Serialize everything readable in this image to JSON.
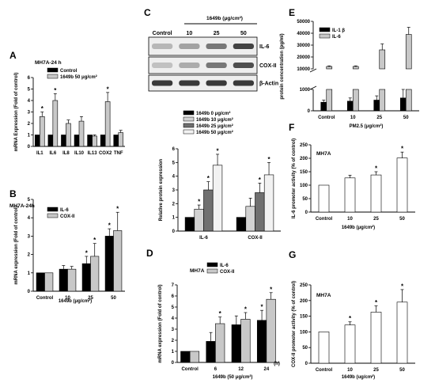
{
  "chart_data": [
    {
      "id": "A",
      "panel_label": "A",
      "type": "bar",
      "title": "MH7A-24 h",
      "ylabel": "mRNA Expression (Fold of control)",
      "ylim": [
        0,
        6
      ],
      "yticks": [
        0,
        1,
        2,
        3,
        4,
        5,
        6
      ],
      "categories": [
        "IL1",
        "IL6",
        "IL8",
        "IL10",
        "IL13",
        "COX2",
        "TNF"
      ],
      "series": [
        {
          "name": "Control",
          "color": "#000000",
          "values": [
            1,
            1,
            1,
            1,
            1,
            1,
            1
          ],
          "errors": [
            0,
            0,
            0,
            0,
            0,
            0,
            0
          ],
          "sig": [
            false,
            false,
            false,
            false,
            false,
            false,
            false
          ]
        },
        {
          "name": "1649b 50 μg/cm²",
          "color": "#c8c8c8",
          "values": [
            2.6,
            4.0,
            2.0,
            2.2,
            0.9,
            3.9,
            1.2
          ],
          "errors": [
            0.4,
            0.6,
            0.3,
            0.4,
            0.1,
            0.8,
            0.2
          ],
          "sig": [
            true,
            true,
            false,
            false,
            false,
            true,
            false
          ]
        }
      ]
    },
    {
      "id": "B",
      "panel_label": "B",
      "type": "bar",
      "title": "MH7A-24h",
      "ylabel": "mRNA expression (Fold of control)",
      "xlabel": "1649b (μg/cm²)",
      "ylim": [
        0,
        5
      ],
      "yticks": [
        0,
        1,
        2,
        3,
        4,
        5
      ],
      "categories": [
        "Control",
        "10",
        "25",
        "50"
      ],
      "series": [
        {
          "name": "IL-6",
          "color": "#000000",
          "values": [
            1.0,
            1.2,
            1.5,
            3.0
          ],
          "errors": [
            0,
            0.2,
            0.4,
            0.4
          ],
          "sig": [
            false,
            false,
            true,
            true
          ]
        },
        {
          "name": "COX-II",
          "color": "#c8c8c8",
          "values": [
            1.0,
            1.2,
            1.9,
            3.3
          ],
          "errors": [
            0,
            0.15,
            0.7,
            1.0
          ],
          "sig": [
            false,
            false,
            true,
            true
          ]
        }
      ]
    },
    {
      "id": "Cchart",
      "type": "bar",
      "ylabel": "Relative protein expression",
      "ylim": [
        0,
        6
      ],
      "yticks": [
        0,
        1,
        2,
        3,
        4,
        5,
        6
      ],
      "categories": [
        "IL-6",
        "COX-II"
      ],
      "series": [
        {
          "name": "1649b 0 μg/cm²",
          "color": "#000000",
          "values": [
            1.0,
            1.0
          ],
          "errors": [
            0,
            0
          ],
          "sig": [
            false,
            false
          ]
        },
        {
          "name": "1649b 10 μg/cm²",
          "color": "#d2d2d2",
          "values": [
            1.6,
            1.8
          ],
          "errors": [
            0.3,
            0.6
          ],
          "sig": [
            true,
            false
          ]
        },
        {
          "name": "1649b 25 μg/cm²",
          "color": "#707070",
          "values": [
            3.0,
            2.8
          ],
          "errors": [
            0.6,
            0.7
          ],
          "sig": [
            true,
            true
          ]
        },
        {
          "name": "1649b 50 μg/cm²",
          "color": "#f2f2f2",
          "values": [
            4.8,
            4.1
          ],
          "errors": [
            0.8,
            0.9
          ],
          "sig": [
            true,
            true
          ]
        }
      ]
    },
    {
      "id": "D",
      "panel_label": "D",
      "type": "bar",
      "title": "MH7A",
      "ylabel": "mRNA expression (Fold of control)",
      "xlabel": "1649b (50 μg/cm²)",
      "ylim": [
        0,
        7
      ],
      "yticks": [
        0,
        1,
        2,
        3,
        4,
        5,
        6,
        7
      ],
      "categories": [
        "Control",
        "6",
        "12",
        "24"
      ],
      "x_unit": "(h)",
      "series": [
        {
          "name": "IL-6",
          "color": "#000000",
          "values": [
            1.0,
            1.9,
            3.4,
            3.8
          ],
          "errors": [
            0,
            0.8,
            0.8,
            0.9
          ],
          "sig": [
            false,
            false,
            false,
            true
          ]
        },
        {
          "name": "COX-II",
          "color": "#c8c8c8",
          "values": [
            1.0,
            3.5,
            3.9,
            5.7
          ],
          "errors": [
            0,
            0.6,
            0.6,
            0.6
          ],
          "sig": [
            false,
            true,
            true,
            true
          ]
        }
      ]
    },
    {
      "id": "E",
      "panel_label": "E",
      "type": "bar",
      "ylabel": "protein concentration (pg/ml)",
      "xlabel": "PM2.5 (μg/cm²)",
      "broken_axis": true,
      "ylim_lower": [
        0,
        1000
      ],
      "yticks_lower": [
        0,
        1000
      ],
      "ylim_upper": [
        10000,
        50000
      ],
      "yticks_upper": [
        10000,
        20000,
        30000,
        40000,
        50000
      ],
      "categories": [
        "Control",
        "10",
        "25",
        "50"
      ],
      "series": [
        {
          "name": "IL-1 β",
          "color": "#000000",
          "values": [
            400,
            450,
            500,
            600
          ],
          "errors": [
            100,
            150,
            200,
            400
          ]
        },
        {
          "name": "IL-6",
          "color": "#c8c8c8",
          "values": [
            12000,
            12000,
            26000,
            39000
          ],
          "errors": [
            500,
            500,
            5000,
            6000
          ]
        }
      ]
    },
    {
      "id": "F",
      "panel_label": "F",
      "type": "bar",
      "title": "MH7A",
      "ylabel": "IL-6 promoter activity (% of control)",
      "xlabel": "1649b (μg/cm²)",
      "ylim": [
        0,
        250
      ],
      "yticks": [
        0,
        50,
        100,
        150,
        200,
        250
      ],
      "categories": [
        "Control",
        "10",
        "25",
        "50"
      ],
      "series": [
        {
          "color": "#ffffff",
          "values": [
            100,
            127,
            138,
            201
          ],
          "errors": [
            0,
            10,
            12,
            22
          ],
          "sig": [
            false,
            false,
            true,
            true
          ]
        }
      ]
    },
    {
      "id": "G",
      "panel_label": "G",
      "type": "bar",
      "title": "MH7A",
      "ylabel": "COX-II promoter activity (% of control)",
      "xlabel": "1649b (ug/cm²)",
      "ylim": [
        0,
        250
      ],
      "yticks": [
        0,
        50,
        100,
        150,
        200,
        250
      ],
      "categories": [
        "Control",
        "10",
        "25",
        "50"
      ],
      "series": [
        {
          "color": "#ffffff",
          "values": [
            100,
            122,
            163,
            195
          ],
          "errors": [
            0,
            10,
            20,
            40
          ],
          "sig": [
            false,
            true,
            true,
            true
          ]
        }
      ]
    }
  ],
  "blot": {
    "panel_label": "C",
    "unit_label": "1649b (μg/cm²)",
    "lanes": [
      "Control",
      "10",
      "25",
      "50"
    ],
    "bands": [
      "IL-6",
      "COX-II",
      "β-Actin"
    ],
    "intensity": [
      [
        0.25,
        0.35,
        0.55,
        0.8
      ],
      [
        0.2,
        0.3,
        0.55,
        0.75
      ],
      [
        0.85,
        0.85,
        0.85,
        0.85
      ]
    ]
  }
}
